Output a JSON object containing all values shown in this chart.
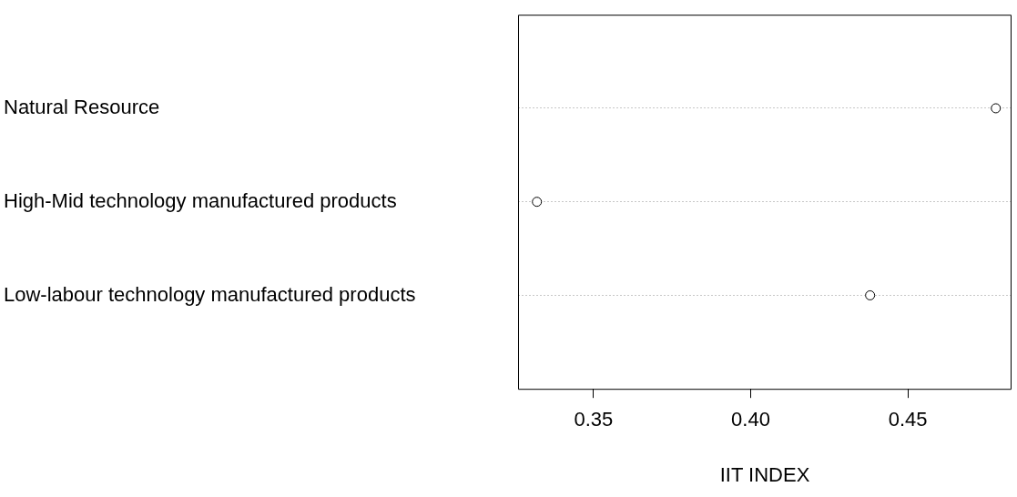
{
  "chart_data": {
    "type": "scatter",
    "orientation": "horizontal",
    "xlabel": "IIT INDEX",
    "categories": [
      "Natural Resource",
      "High-Mid technology manufactured products",
      "Low-labour technology manufactured products"
    ],
    "values": [
      0.478,
      0.332,
      0.438
    ],
    "color": "#000000",
    "marker": "circle",
    "grid": "y",
    "xlim": [
      0.326,
      0.483
    ],
    "xticks": [
      {
        "value": 0.35,
        "label": "0.35"
      },
      {
        "value": 0.4,
        "label": "0.40"
      },
      {
        "value": 0.45,
        "label": "0.45"
      }
    ]
  }
}
